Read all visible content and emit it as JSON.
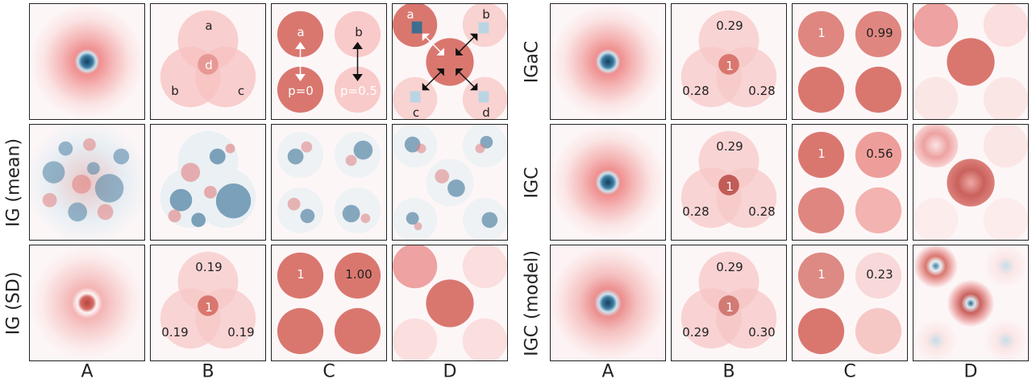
{
  "row_labels_left": [
    "",
    "IG (mean)",
    "IG (SD)"
  ],
  "row_labels_right": [
    "IGaC",
    "IGC",
    "IGC (model)"
  ],
  "column_labels": [
    "A",
    "B",
    "C",
    "D",
    "A",
    "B",
    "C",
    "D"
  ],
  "schematic": {
    "B": [
      "a",
      "b",
      "c",
      "d"
    ],
    "C": [
      "a",
      "b",
      "p=0",
      "p=0.5"
    ],
    "D": [
      "a",
      "b",
      "c",
      "d"
    ]
  },
  "ig_sd": {
    "B_top": "0.19",
    "B_left": "0.19",
    "B_right": "0.19",
    "B_center": "1",
    "C_a": "1",
    "C_b": "1.00"
  },
  "igac": {
    "B_top": "0.29",
    "B_left": "0.28",
    "B_right": "0.28",
    "B_center": "1",
    "C_a": "1",
    "C_b": "0.99"
  },
  "igc": {
    "B_top": "0.29",
    "B_left": "0.28",
    "B_right": "0.28",
    "B_center": "1",
    "C_a": "1",
    "C_b": "0.56"
  },
  "igc_model": {
    "B_top": "0.29",
    "B_left": "0.29",
    "B_right": "0.30",
    "B_center": "1",
    "C_a": "1",
    "C_b": "0.23"
  },
  "colors": {
    "background": "#fdf6f7",
    "pale": "#f9d2d2",
    "medium": "#ef9e9e",
    "strong": "#d9776f",
    "dark": "#c25c57",
    "blue": "#3d6e8f",
    "light_blue": "#b9d5e3"
  }
}
